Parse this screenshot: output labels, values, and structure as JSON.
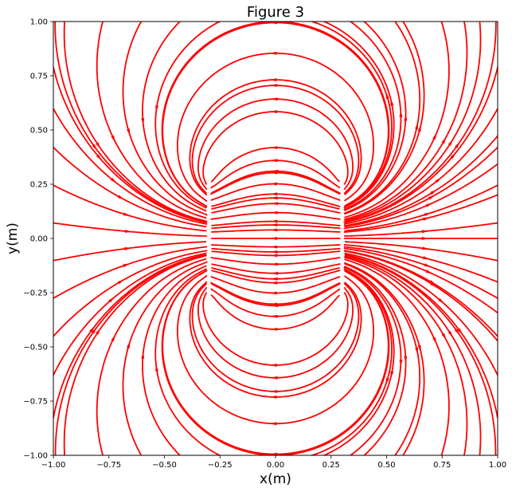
{
  "chart_data": {
    "type": "streamplot",
    "title": "Figure 3",
    "xlabel": "x(m)",
    "ylabel": "y(m)",
    "xlim": [
      -1.0,
      1.0
    ],
    "ylim": [
      -1.0,
      1.0
    ],
    "x_ticks": [
      -1.0,
      -0.75,
      -0.5,
      -0.25,
      0.0,
      0.25,
      0.5,
      0.75,
      1.0
    ],
    "y_ticks": [
      -1.0,
      -0.75,
      -0.5,
      -0.25,
      0.0,
      0.25,
      0.5,
      0.75,
      1.0
    ],
    "x_tick_labels": [
      "−1.00",
      "−0.75",
      "−0.50",
      "−0.25",
      "0.00",
      "0.25",
      "0.50",
      "0.75",
      "1.00"
    ],
    "y_tick_labels": [
      "−1.00",
      "−0.75",
      "−0.50",
      "−0.25",
      "0.00",
      "0.25",
      "0.50",
      "0.75",
      "1.00"
    ],
    "grid": false,
    "line_color": "#ff0000",
    "field_sources": [
      {
        "x": -0.3,
        "y_from": -0.28,
        "y_to": 0.28
      },
      {
        "x": 0.3,
        "y_from": -0.28,
        "y_to": 0.28
      }
    ]
  }
}
